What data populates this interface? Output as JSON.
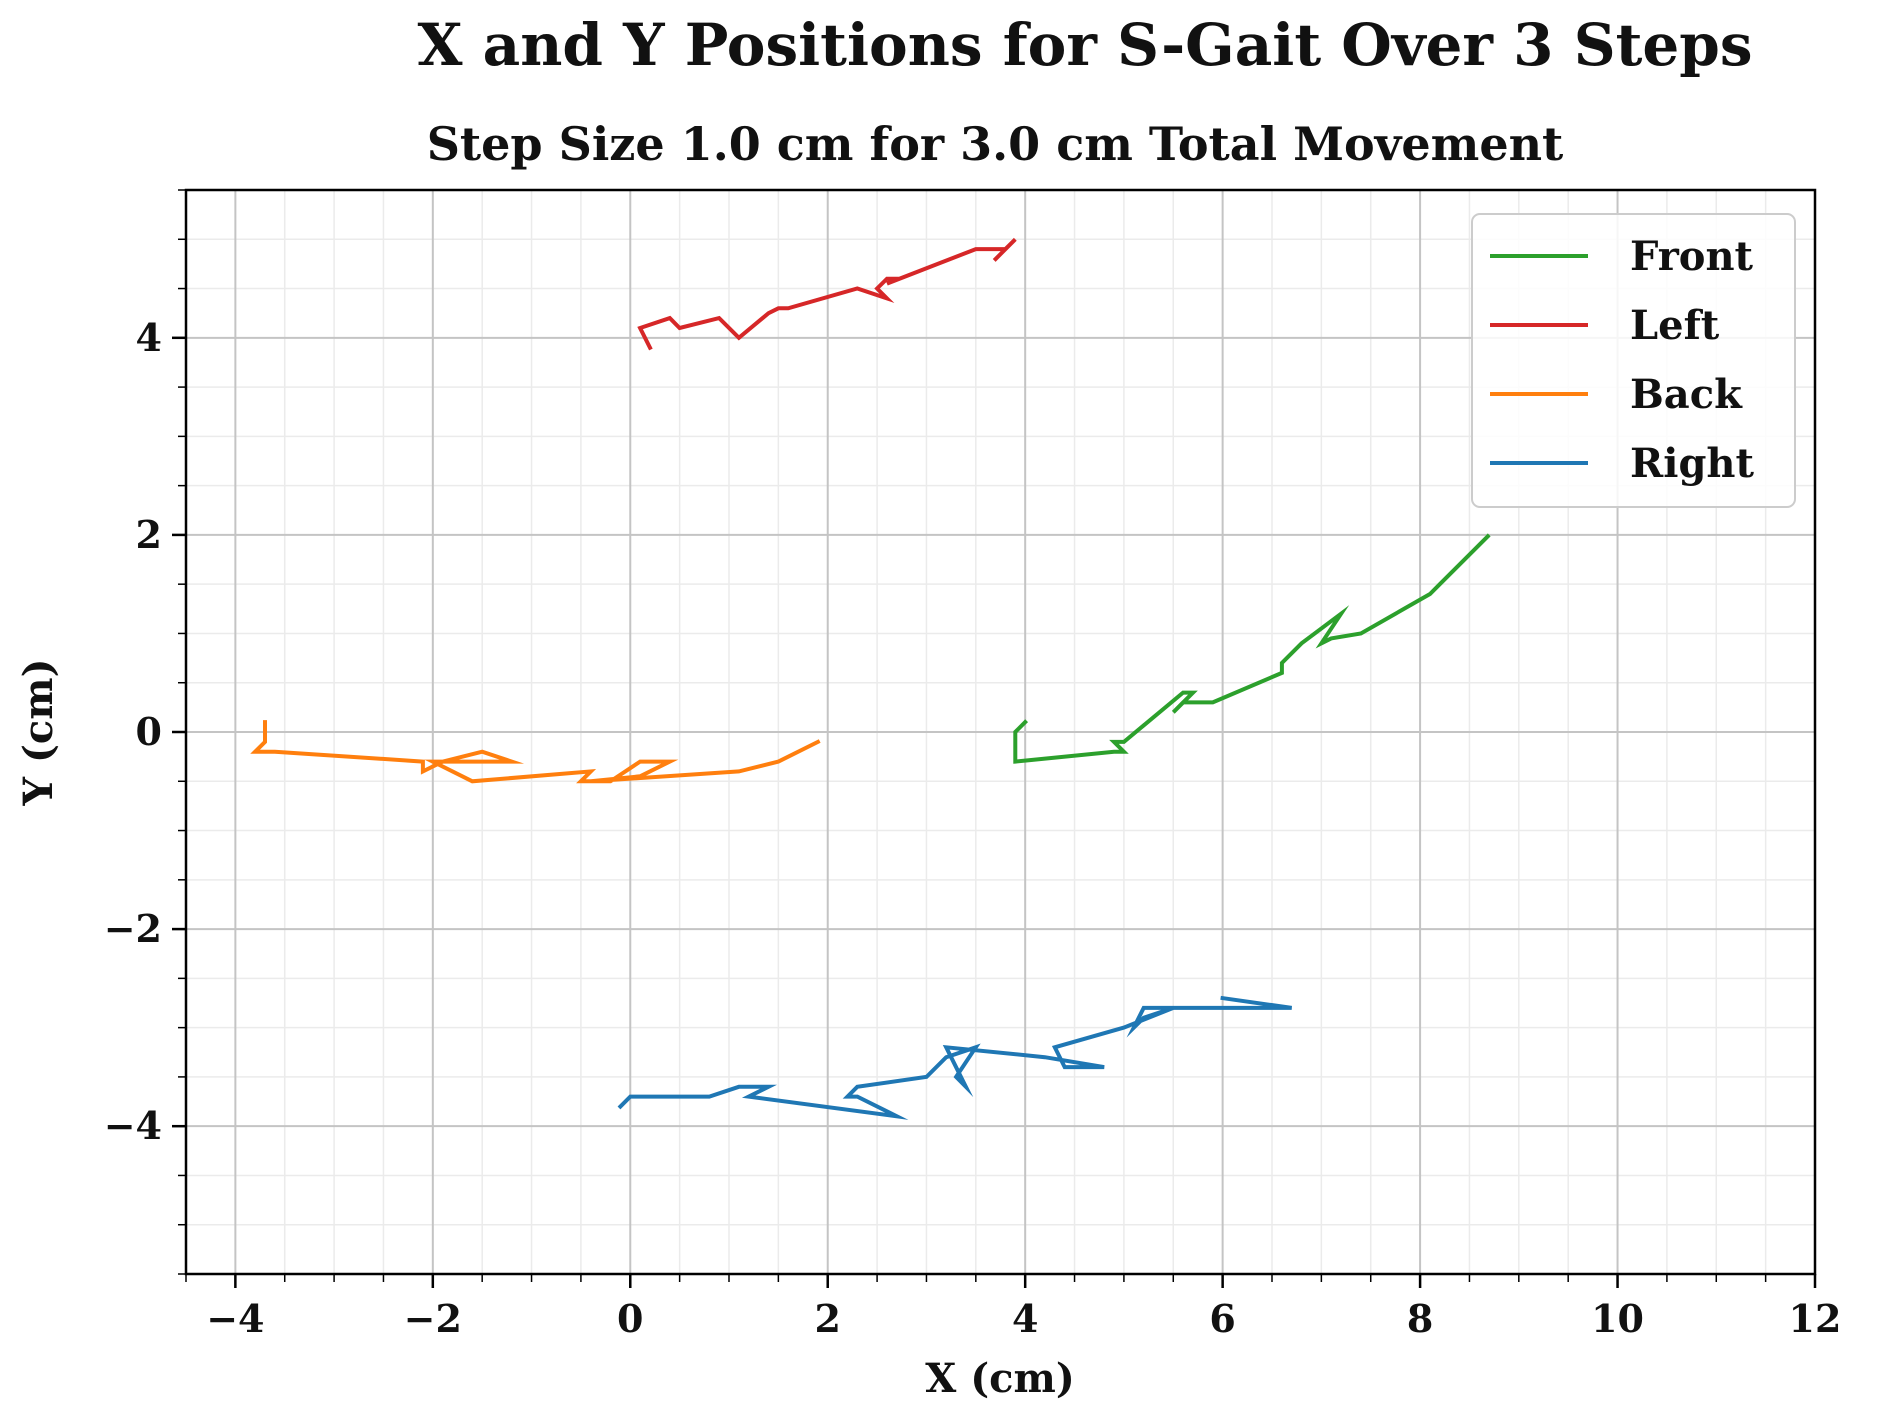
{
  "chart_data": {
    "type": "line",
    "title": "X and Y Positions for S-Gait Over 3 Steps",
    "subtitle": "Step Size 1.0 cm for 3.0 cm Total Movement",
    "xlabel": "X (cm)",
    "ylabel": "Y (cm)",
    "xlim": [
      -4.5,
      12
    ],
    "ylim": [
      -5.5,
      5.5
    ],
    "x_ticks": [
      -4,
      -2,
      0,
      2,
      4,
      6,
      8,
      10,
      12
    ],
    "y_ticks": [
      -4,
      -2,
      0,
      2,
      4
    ],
    "x_tick_labels": [
      "−4",
      "−2",
      "0",
      "2",
      "4",
      "6",
      "8",
      "10",
      "12"
    ],
    "y_tick_labels": [
      "−4",
      "−2",
      "0",
      "2",
      "4"
    ],
    "grid": true,
    "minor_grid": true,
    "legend_position": "top-right",
    "series": [
      {
        "name": "Front",
        "color": "#2ca02c",
        "x": [
          4.0,
          3.9,
          3.9,
          4.9,
          5.0,
          4.9,
          5.0,
          5.6,
          5.7,
          5.5,
          5.6,
          5.8,
          5.9,
          6.6,
          6.6,
          6.8,
          7.2,
          7.0,
          7.1,
          7.4,
          8.1,
          8.2,
          8.7,
          8.6
        ],
        "y": [
          0.1,
          0.0,
          -0.3,
          -0.2,
          -0.2,
          -0.1,
          -0.1,
          0.4,
          0.4,
          0.2,
          0.3,
          0.3,
          0.3,
          0.6,
          0.7,
          0.9,
          1.2,
          0.9,
          0.95,
          1.0,
          1.4,
          1.5,
          2.0,
          1.9
        ]
      },
      {
        "name": "Left",
        "color": "#d62728",
        "x": [
          0.2,
          0.1,
          0.4,
          0.5,
          0.9,
          1.1,
          1.4,
          1.5,
          1.6,
          2.3,
          2.6,
          2.5,
          2.6,
          2.7,
          2.6,
          3.5,
          3.8,
          3.9,
          3.7
        ],
        "y": [
          3.9,
          4.1,
          4.2,
          4.1,
          4.2,
          4.0,
          4.25,
          4.3,
          4.3,
          4.5,
          4.4,
          4.5,
          4.6,
          4.6,
          4.55,
          4.9,
          4.9,
          5.0,
          4.8
        ]
      },
      {
        "name": "Back",
        "color": "#ff7f0e",
        "x": [
          -3.7,
          -3.7,
          -3.8,
          -3.6,
          -2.1,
          -2.1,
          -1.9,
          -1.5,
          -1.2,
          -1.4,
          -2.0,
          -1.6,
          -0.4,
          -0.5,
          -0.2,
          0.1,
          0.4,
          0.1,
          -0.4,
          1.1,
          1.5,
          1.9
        ],
        "y": [
          0.1,
          -0.1,
          -0.2,
          -0.2,
          -0.3,
          -0.4,
          -0.3,
          -0.2,
          -0.3,
          -0.3,
          -0.3,
          -0.5,
          -0.4,
          -0.5,
          -0.5,
          -0.3,
          -0.3,
          -0.45,
          -0.5,
          -0.4,
          -0.3,
          -0.1
        ],
        "last_point": {
          "x": 1.9,
          "y": -0.1
        }
      },
      {
        "name": "Right",
        "color": "#1f77b4",
        "x": [
          -0.1,
          0.0,
          0.8,
          1.1,
          1.4,
          1.2,
          2.7,
          2.3,
          2.2,
          2.3,
          3.0,
          3.2,
          3.5,
          3.3,
          3.4,
          3.2,
          4.2,
          4.8,
          4.4,
          4.3,
          5.0,
          5.5,
          5.2,
          5.1,
          5.2,
          6.7,
          6.0
        ],
        "y": [
          -3.8,
          -3.7,
          -3.7,
          -3.6,
          -3.6,
          -3.7,
          -3.9,
          -3.7,
          -3.7,
          -3.6,
          -3.5,
          -3.3,
          -3.2,
          -3.5,
          -3.6,
          -3.2,
          -3.3,
          -3.4,
          -3.4,
          -3.2,
          -3.0,
          -2.8,
          -2.9,
          -3.0,
          -2.8,
          -2.8,
          -2.7
        ]
      }
    ]
  }
}
